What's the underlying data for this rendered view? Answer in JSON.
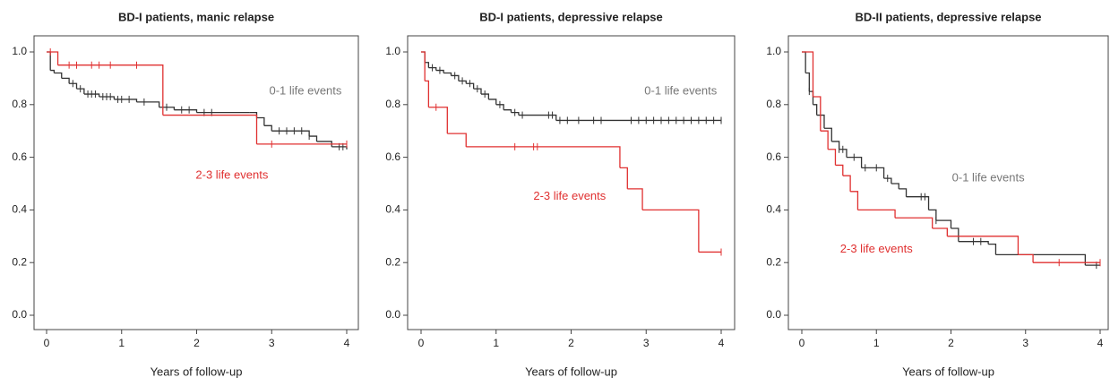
{
  "chart_data": [
    {
      "type": "step",
      "title": "BD-I patients, manic relapse",
      "x_label": "Years of follow-up",
      "xlim": [
        0,
        4
      ],
      "ylim": [
        0,
        1
      ],
      "xticks": [
        0,
        1,
        2,
        3,
        4
      ],
      "yticks": [
        {
          "value": 0,
          "label": "0.0"
        },
        0.2,
        0.4,
        0.6,
        0.8,
        {
          "value": 1,
          "label": "1.0"
        }
      ],
      "series": [
        {
          "name": "0-1 life events",
          "color": "#333333",
          "x": [
            0,
            0.05,
            0.1,
            0.2,
            0.3,
            0.4,
            0.5,
            0.7,
            0.9,
            1.2,
            1.5,
            1.7,
            2.0,
            2.7,
            2.8,
            2.9,
            3.0,
            3.5,
            3.6,
            3.8,
            4.0
          ],
          "values": [
            1.0,
            0.93,
            0.92,
            0.9,
            0.88,
            0.86,
            0.84,
            0.83,
            0.82,
            0.81,
            0.79,
            0.78,
            0.77,
            0.77,
            0.75,
            0.72,
            0.7,
            0.68,
            0.66,
            0.64,
            0.63
          ],
          "censored": [
            0.35,
            0.45,
            0.55,
            0.6,
            0.65,
            0.75,
            0.8,
            0.85,
            0.95,
            1.0,
            1.1,
            1.3,
            1.6,
            1.8,
            1.9,
            2.1,
            2.2,
            3.1,
            3.2,
            3.3,
            3.4,
            3.5,
            3.9,
            3.95
          ]
        },
        {
          "name": "2-3 life events",
          "color": "#e03030",
          "x": [
            0,
            0.15,
            1.55,
            2.8,
            4.0
          ],
          "values": [
            1.0,
            0.95,
            0.76,
            0.65,
            0.65
          ],
          "censored": [
            0.05,
            0.3,
            0.4,
            0.6,
            0.7,
            0.85,
            1.2,
            3.0,
            4.0
          ]
        }
      ]
    },
    {
      "type": "step",
      "title": "BD-I patients, depressive relapse",
      "x_label": "Years of follow-up",
      "xlim": [
        0,
        4
      ],
      "ylim": [
        0,
        1
      ],
      "xticks": [
        0,
        1,
        2,
        3,
        4
      ],
      "yticks": [
        {
          "value": 0,
          "label": "0.0"
        },
        0.2,
        0.4,
        0.6,
        0.8,
        {
          "value": 1,
          "label": "1.0"
        }
      ],
      "series": [
        {
          "name": "0-1 life events",
          "color": "#333333",
          "x": [
            0,
            0.05,
            0.1,
            0.2,
            0.3,
            0.4,
            0.5,
            0.6,
            0.7,
            0.8,
            0.9,
            1.0,
            1.1,
            1.2,
            1.3,
            1.8,
            4.0
          ],
          "values": [
            1.0,
            0.96,
            0.94,
            0.93,
            0.92,
            0.91,
            0.89,
            0.88,
            0.86,
            0.84,
            0.82,
            0.8,
            0.78,
            0.77,
            0.76,
            0.74,
            0.74
          ],
          "censored": [
            0.15,
            0.25,
            0.45,
            0.55,
            0.65,
            0.75,
            0.85,
            1.05,
            1.25,
            1.35,
            1.7,
            1.75,
            1.85,
            1.95,
            2.1,
            2.3,
            2.4,
            2.8,
            2.9,
            3.0,
            3.1,
            3.2,
            3.3,
            3.4,
            3.5,
            3.6,
            3.7,
            3.8,
            3.9,
            4.0
          ]
        },
        {
          "name": "2-3 life events",
          "color": "#e03030",
          "x": [
            0,
            0.05,
            0.1,
            0.35,
            0.6,
            2.65,
            2.75,
            2.95,
            3.7,
            4.0
          ],
          "values": [
            1.0,
            0.89,
            0.79,
            0.69,
            0.64,
            0.56,
            0.48,
            0.4,
            0.24,
            0.24
          ],
          "censored": [
            0.2,
            1.25,
            1.5,
            1.55,
            4.0
          ]
        }
      ]
    },
    {
      "type": "step",
      "title": "BD-II patients, depressive relapse",
      "x_label": "Years of follow-up",
      "xlim": [
        0,
        4
      ],
      "ylim": [
        0,
        1
      ],
      "xticks": [
        0,
        1,
        2,
        3,
        4
      ],
      "yticks": [
        {
          "value": 0,
          "label": "0.0"
        },
        0.2,
        0.4,
        0.6,
        0.8,
        {
          "value": 1,
          "label": "1.0"
        }
      ],
      "series": [
        {
          "name": "0-1 life events",
          "color": "#333333",
          "x": [
            0,
            0.05,
            0.1,
            0.15,
            0.2,
            0.3,
            0.4,
            0.5,
            0.6,
            0.8,
            1.1,
            1.2,
            1.3,
            1.4,
            1.7,
            1.8,
            2.0,
            2.1,
            2.5,
            2.6,
            3.8,
            4.0
          ],
          "values": [
            1.0,
            0.92,
            0.85,
            0.8,
            0.76,
            0.71,
            0.66,
            0.63,
            0.6,
            0.56,
            0.52,
            0.5,
            0.48,
            0.45,
            0.4,
            0.36,
            0.33,
            0.28,
            0.27,
            0.23,
            0.19,
            0.19
          ],
          "censored": [
            0.1,
            0.5,
            0.55,
            0.7,
            0.85,
            1.0,
            1.15,
            1.6,
            1.65,
            1.8,
            2.3,
            2.4,
            3.95
          ]
        },
        {
          "name": "2-3 life events",
          "color": "#e03030",
          "x": [
            0,
            0.15,
            0.25,
            0.35,
            0.45,
            0.55,
            0.65,
            0.75,
            1.25,
            1.75,
            1.95,
            2.9,
            3.1,
            4.0
          ],
          "values": [
            1.0,
            0.83,
            0.7,
            0.63,
            0.57,
            0.53,
            0.47,
            0.4,
            0.37,
            0.33,
            0.3,
            0.23,
            0.2,
            0.2
          ],
          "censored": [
            3.45,
            4.0
          ]
        }
      ]
    }
  ]
}
